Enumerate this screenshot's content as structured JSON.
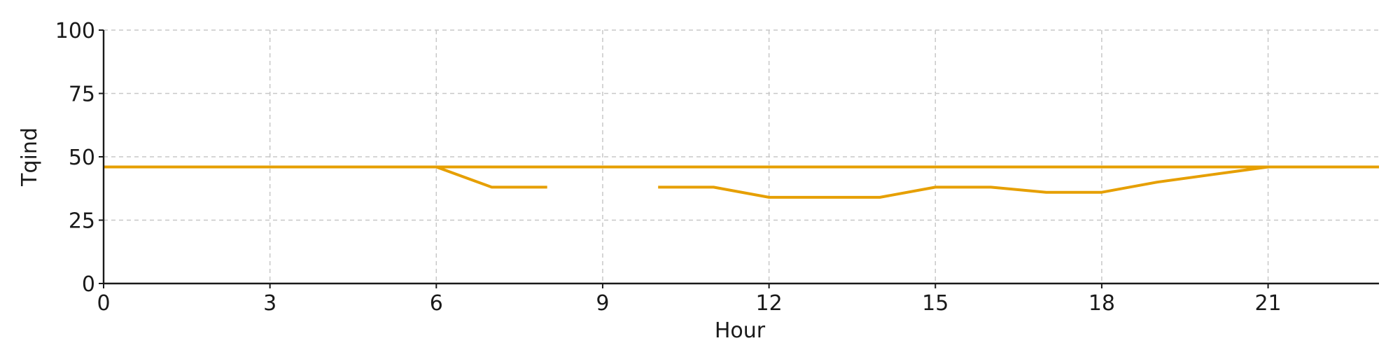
{
  "chart_data": {
    "type": "line",
    "title": "",
    "xlabel": "Hour",
    "ylabel": "Tqind",
    "xlim": [
      0,
      23
    ],
    "ylim": [
      0,
      100
    ],
    "xticks": [
      0,
      3,
      6,
      9,
      12,
      15,
      18,
      21
    ],
    "yticks": [
      0,
      25,
      50,
      75,
      100
    ],
    "grid": true,
    "legend": "none",
    "series": [
      {
        "color": "#E69F00",
        "x": [
          0,
          23
        ],
        "y": [
          46,
          46
        ]
      },
      {
        "color": "#E69F00",
        "x": [
          0,
          1,
          2,
          3,
          4,
          5,
          6,
          7,
          8,
          9,
          10,
          11,
          12,
          13,
          14,
          15,
          16,
          17,
          18,
          19,
          20,
          21,
          22,
          23
        ],
        "y": [
          46,
          46,
          46,
          46,
          46,
          46,
          46,
          38,
          38,
          null,
          38,
          38,
          34,
          34,
          34,
          38,
          38,
          36,
          36,
          40,
          43,
          46,
          46,
          46
        ]
      }
    ]
  }
}
